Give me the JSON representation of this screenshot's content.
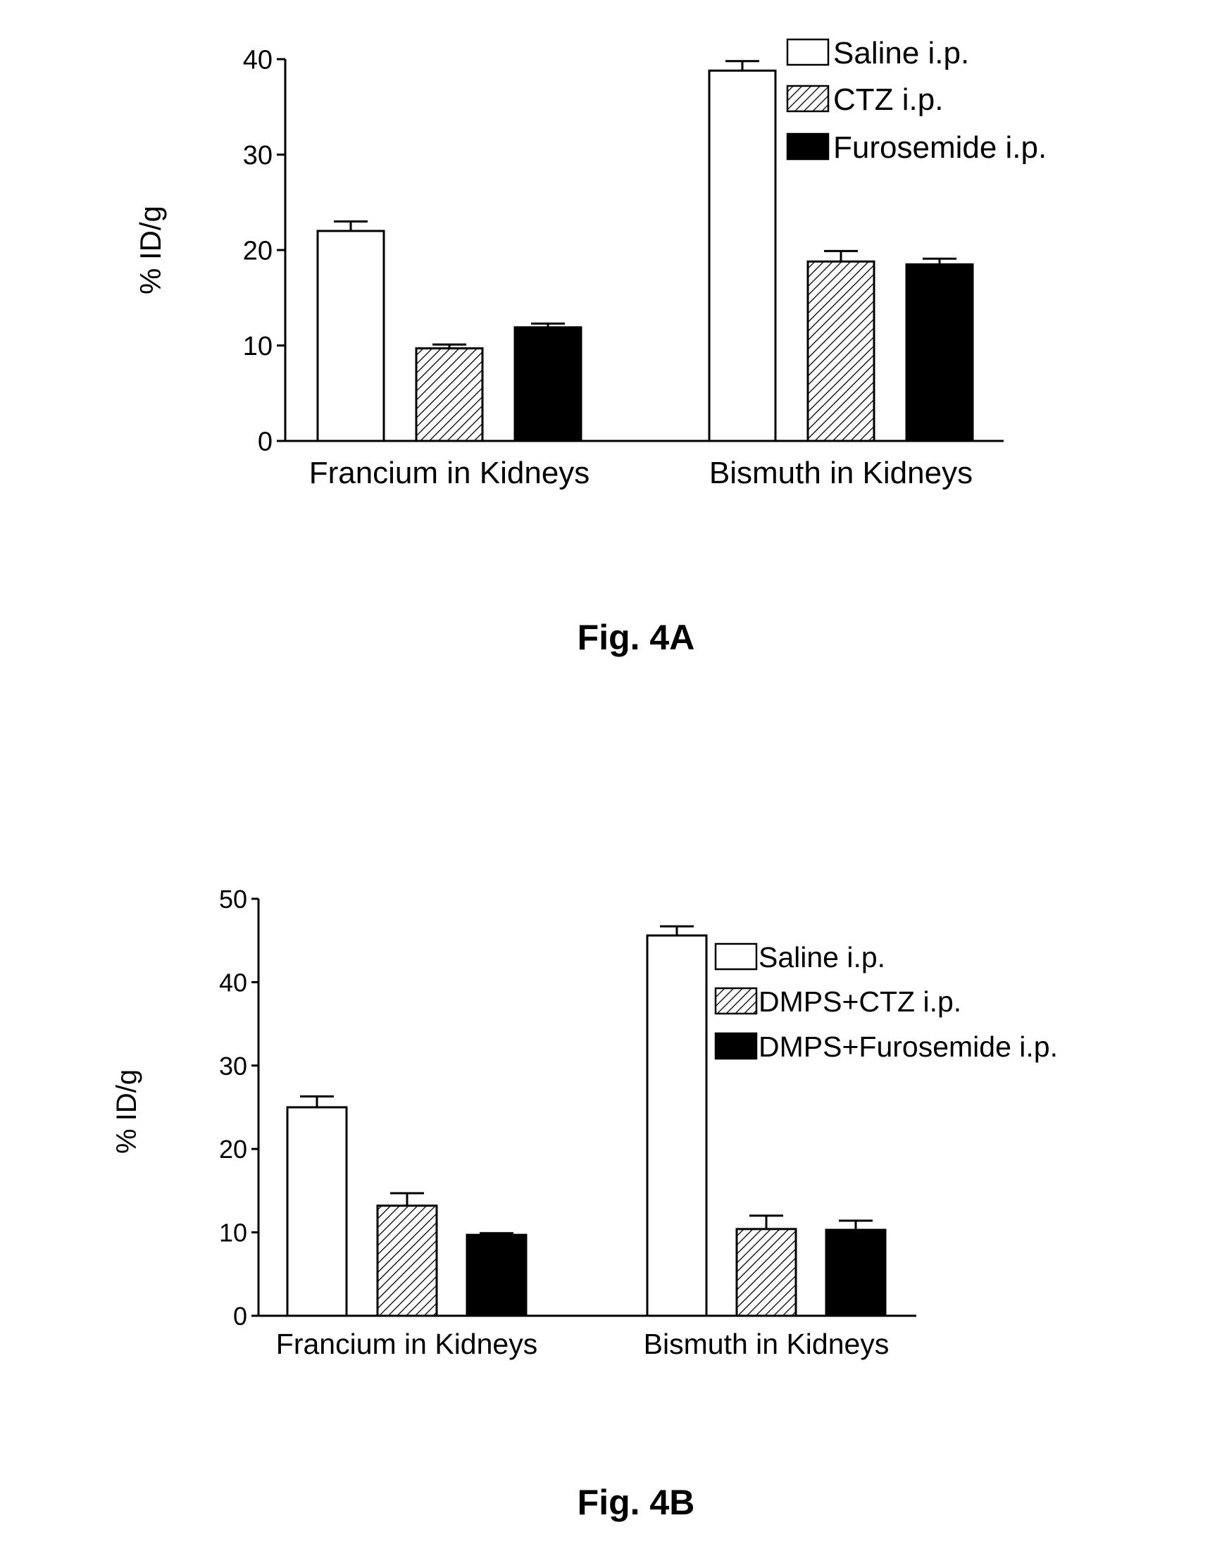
{
  "page": {
    "background": "#ffffff"
  },
  "chart_data": [
    {
      "type": "bar",
      "caption": "Fig. 4A",
      "ylabel": "% ID/g",
      "xlabel": "",
      "ylim": [
        0,
        40
      ],
      "yticks": [
        0,
        10,
        20,
        30,
        40
      ],
      "grid": false,
      "legend_position": "top-right",
      "categories": [
        "Francium in Kidneys",
        "Bismuth in Kidneys"
      ],
      "series": [
        {
          "name": "Saline i.p.",
          "fill": "open",
          "values": [
            22.0,
            38.8
          ],
          "errors": [
            1.0,
            1.0
          ]
        },
        {
          "name": "CTZ i.p.",
          "fill": "hatched",
          "values": [
            9.7,
            18.8
          ],
          "errors": [
            0.4,
            1.1
          ]
        },
        {
          "name": "Furosemide i.p.",
          "fill": "solid",
          "values": [
            11.9,
            18.5
          ],
          "errors": [
            0.4,
            0.6
          ]
        }
      ]
    },
    {
      "type": "bar",
      "caption": "Fig. 4B",
      "ylabel": "% ID/g",
      "xlabel": "",
      "ylim": [
        0,
        50
      ],
      "yticks": [
        0,
        10,
        20,
        30,
        40,
        50
      ],
      "grid": false,
      "legend_position": "top-right",
      "categories": [
        "Francium in Kidneys",
        "Bismuth in Kidneys"
      ],
      "series": [
        {
          "name": "Saline i.p.",
          "fill": "open",
          "values": [
            25.0,
            45.6
          ],
          "errors": [
            1.3,
            1.1
          ]
        },
        {
          "name": "DMPS+CTZ i.p.",
          "fill": "hatched",
          "values": [
            13.2,
            10.4
          ],
          "errors": [
            1.5,
            1.6
          ]
        },
        {
          "name": "DMPS+Furosemide i.p.",
          "fill": "solid",
          "values": [
            9.7,
            10.3
          ],
          "errors": [
            0.2,
            1.1
          ]
        }
      ]
    }
  ],
  "colors": {
    "ink": "#000000",
    "paper": "#ffffff"
  }
}
